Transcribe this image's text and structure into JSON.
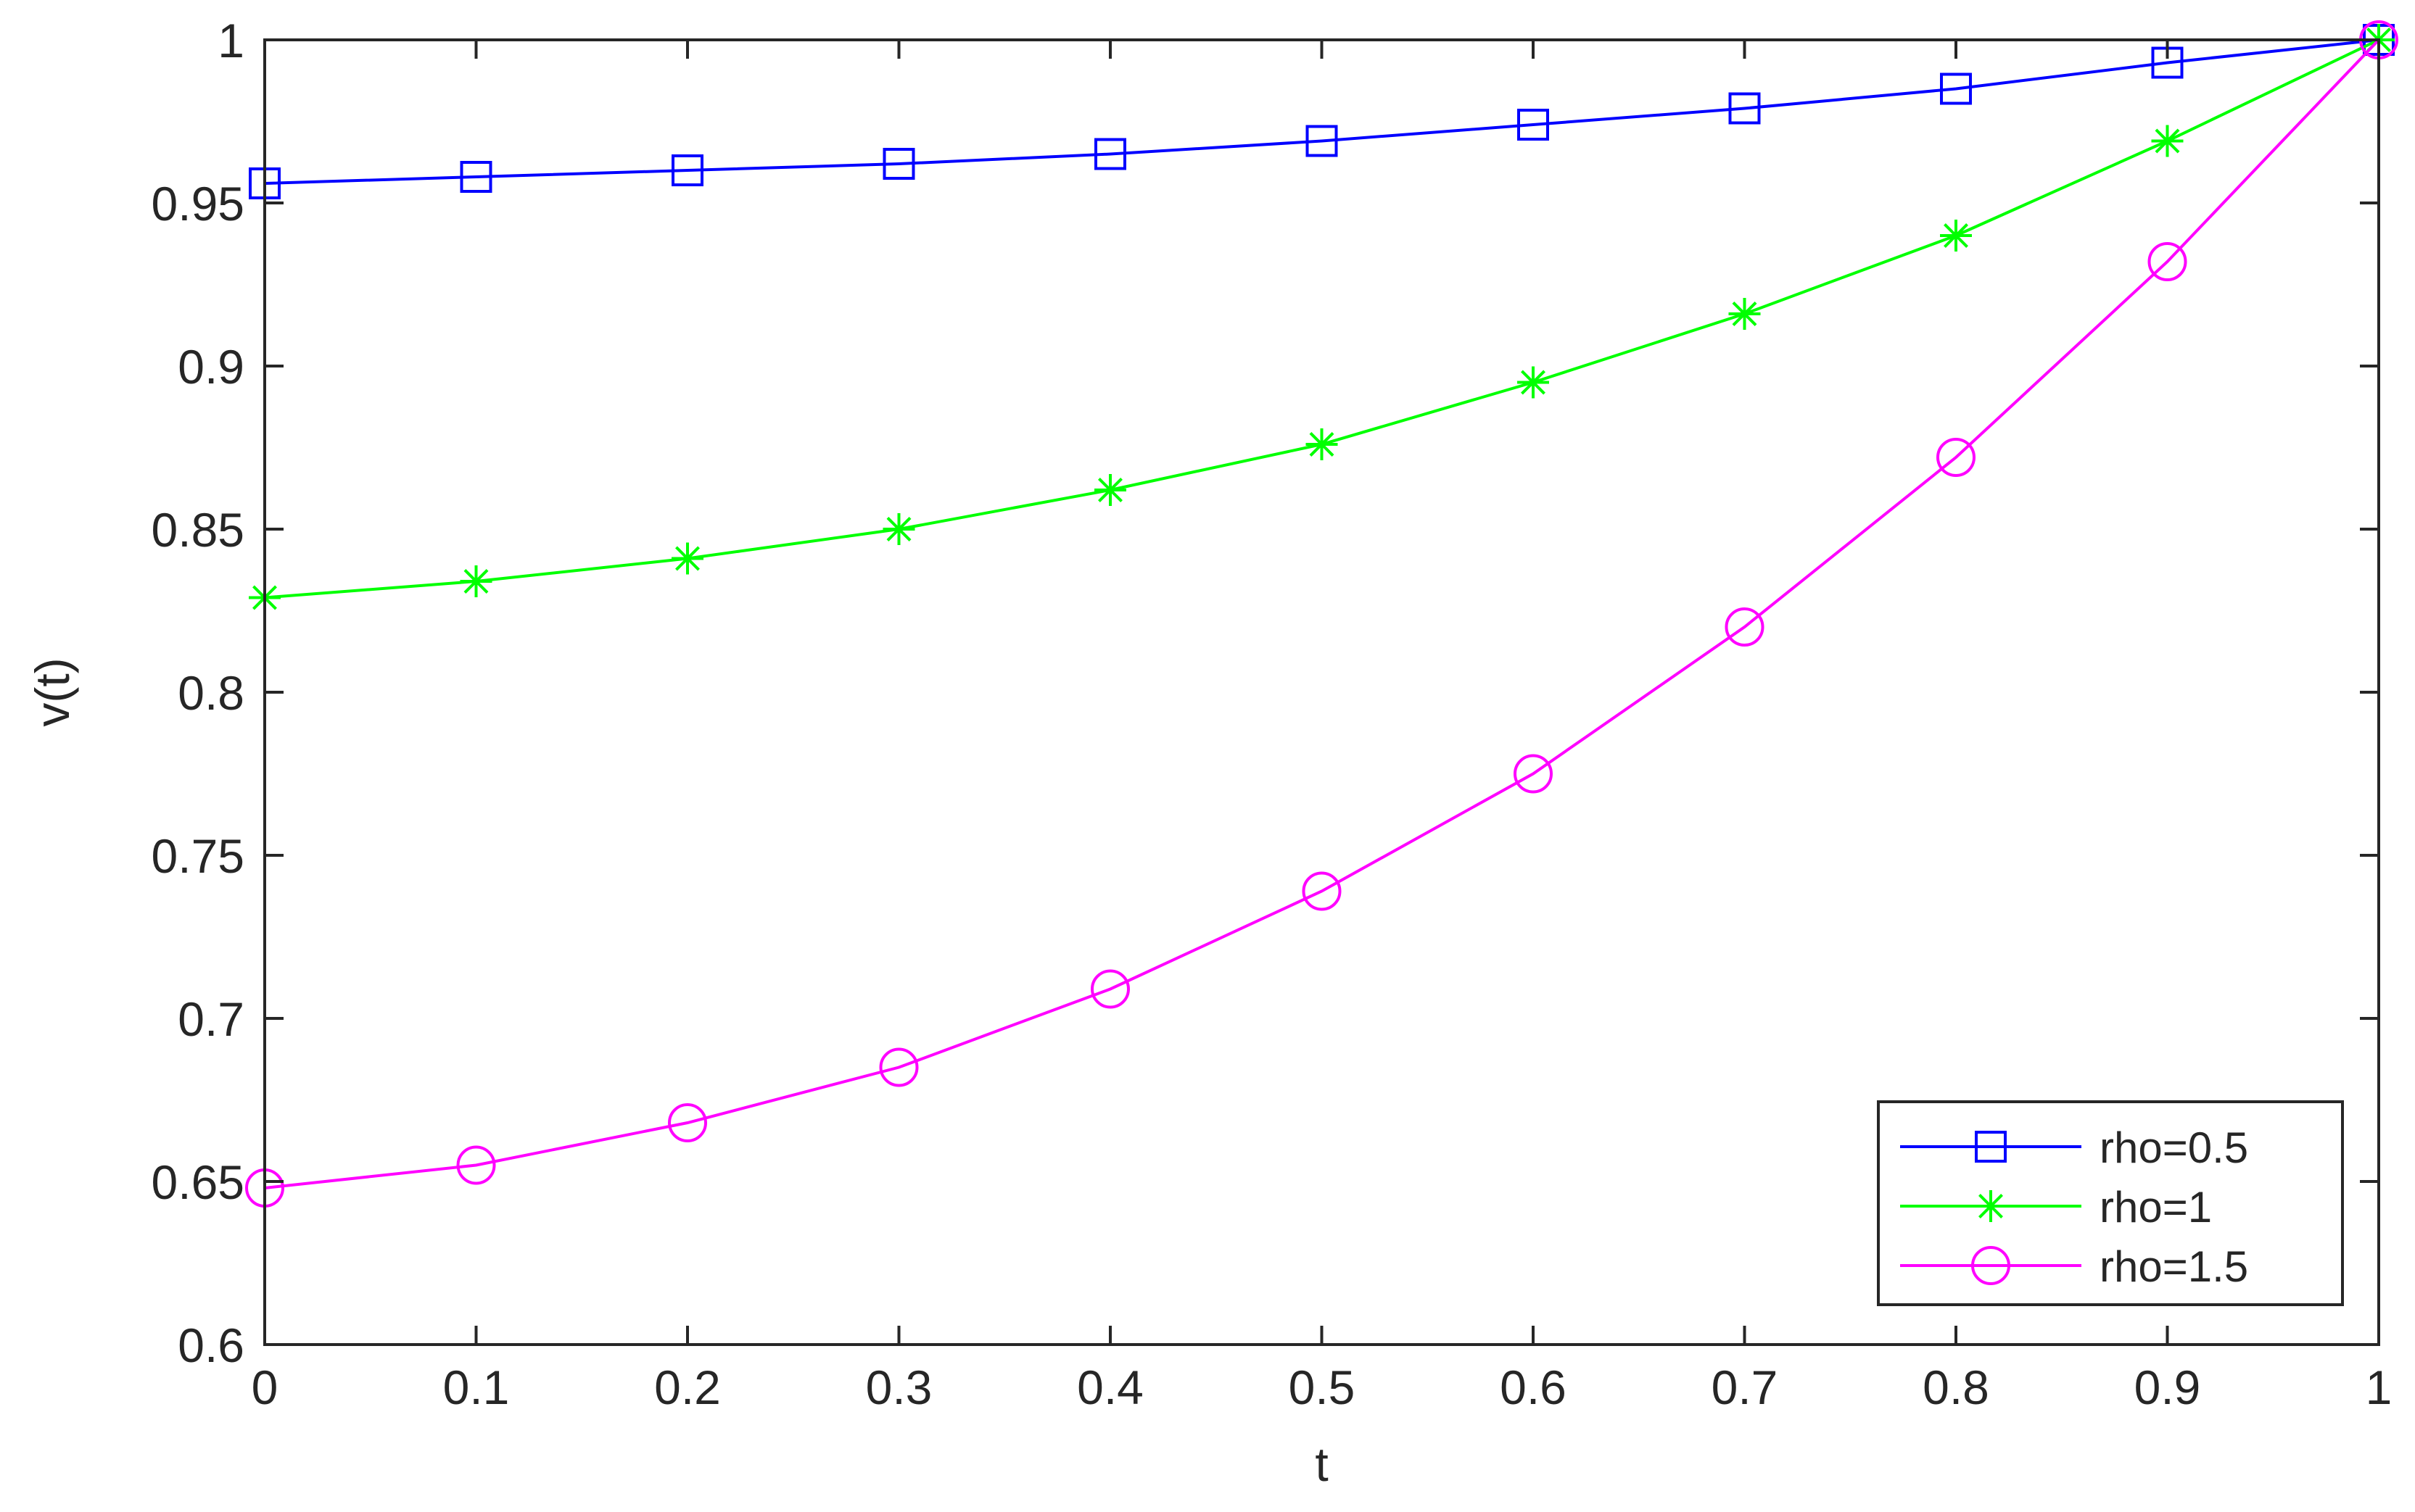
{
  "chart_data": {
    "type": "line",
    "xlabel": "t",
    "ylabel": "v(t)",
    "xlim": [
      0,
      1
    ],
    "ylim": [
      0.6,
      1
    ],
    "xticks": [
      "0",
      "0.1",
      "0.2",
      "0.3",
      "0.4",
      "0.5",
      "0.6",
      "0.7",
      "0.8",
      "0.9",
      "1"
    ],
    "yticks": [
      "0.6",
      "0.65",
      "0.7",
      "0.75",
      "0.8",
      "0.85",
      "0.9",
      "0.95",
      "1"
    ],
    "grid": false,
    "legend_position": "bottom-right",
    "x": [
      0,
      0.1,
      0.2,
      0.3,
      0.4,
      0.5,
      0.6,
      0.7,
      0.8,
      0.9,
      1
    ],
    "series": [
      {
        "name": "rho=0.5",
        "color": "#0000ff",
        "marker": "square",
        "values": [
          0.956,
          0.958,
          0.96,
          0.962,
          0.965,
          0.969,
          0.974,
          0.979,
          0.985,
          0.993,
          1.0
        ]
      },
      {
        "name": "rho=1",
        "color": "#00ff00",
        "marker": "asterisk",
        "values": [
          0.829,
          0.834,
          0.841,
          0.85,
          0.862,
          0.876,
          0.895,
          0.916,
          0.94,
          0.969,
          1.0
        ]
      },
      {
        "name": "rho=1.5",
        "color": "#ff00ff",
        "marker": "circle",
        "values": [
          0.648,
          0.655,
          0.668,
          0.685,
          0.709,
          0.739,
          0.775,
          0.82,
          0.872,
          0.932,
          1.0
        ]
      }
    ]
  }
}
